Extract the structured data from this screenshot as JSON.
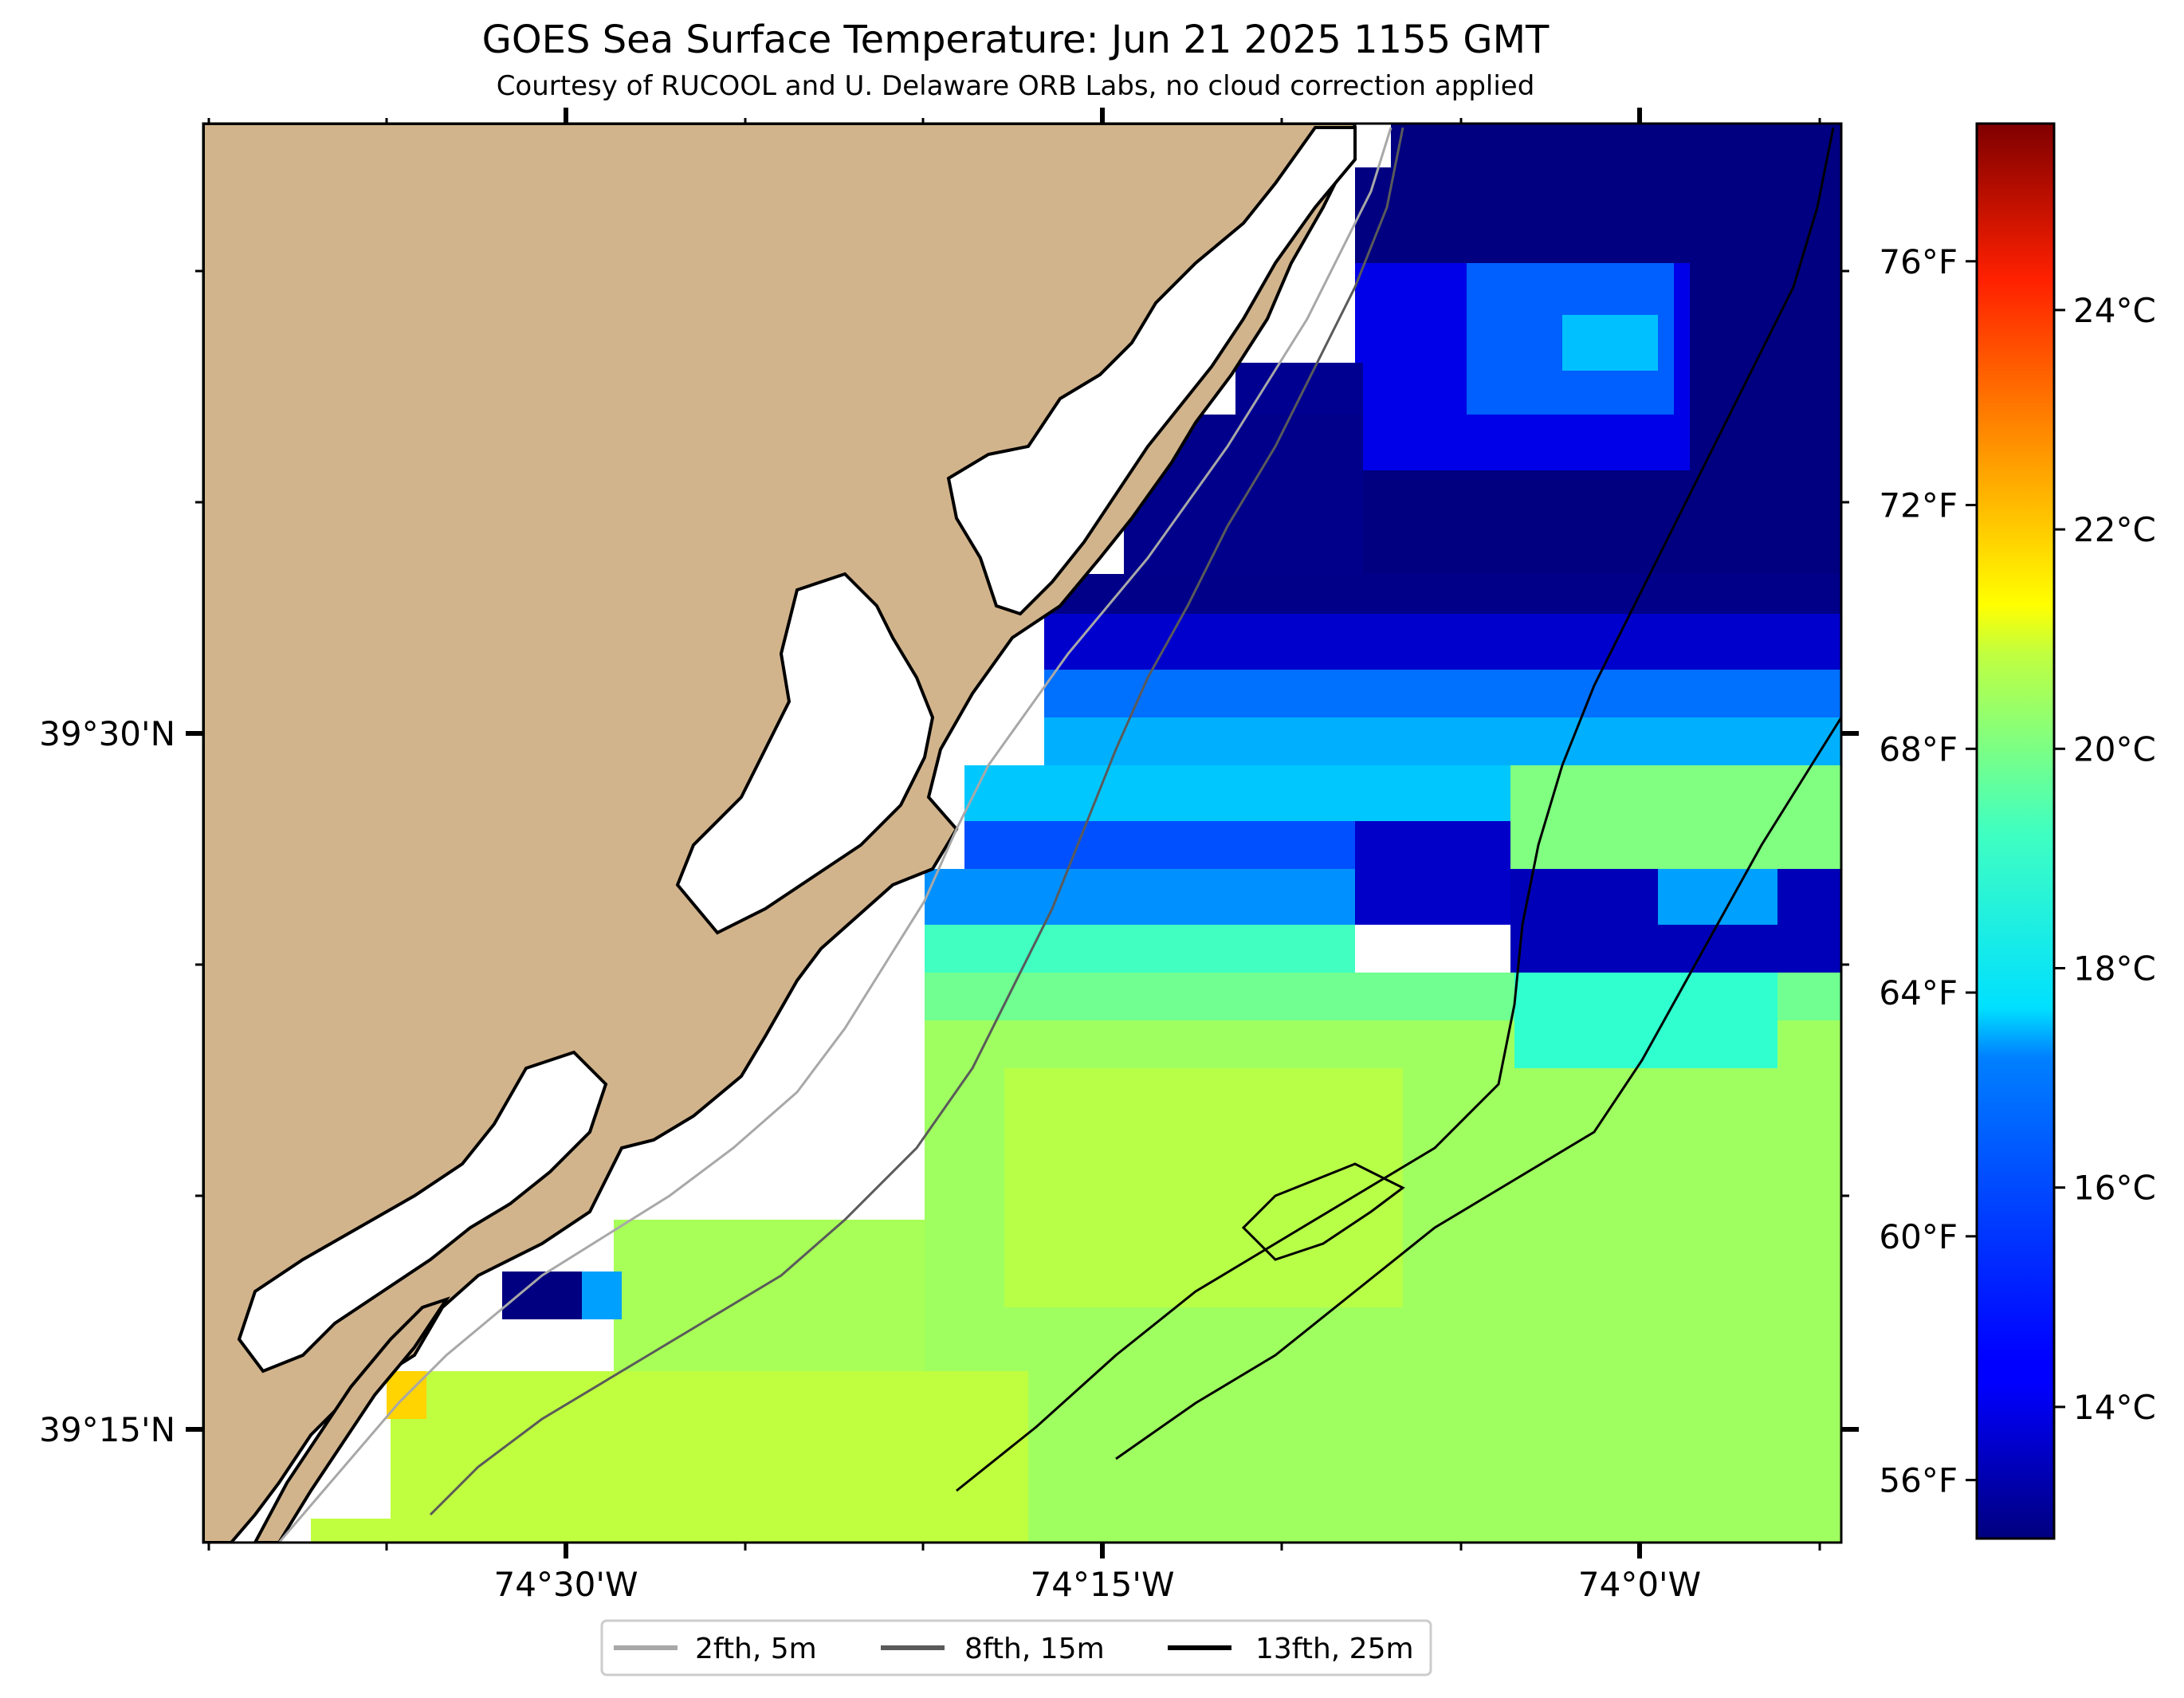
{
  "title": "GOES Sea Surface Temperature: Jun 21 2025 1155 GMT",
  "subtitle": "Courtesy of RUCOOL and U. Delaware ORB Labs, no cloud correction applied",
  "axes": {
    "x_ticks": [
      "74°30'W",
      "74°15'W",
      "74°0'W"
    ],
    "y_ticks": [
      "39°30'N",
      "39°15'N"
    ]
  },
  "colorbar": {
    "colormap": "jet",
    "range_c": [
      12.8,
      25.7
    ],
    "celsius_ticks": [
      "24°C",
      "22°C",
      "20°C",
      "18°C",
      "16°C",
      "14°C"
    ],
    "celsius_values": [
      24,
      22,
      20,
      18,
      16,
      14
    ],
    "fahrenheit_ticks": [
      "76°F",
      "72°F",
      "68°F",
      "64°F",
      "60°F",
      "56°F"
    ],
    "fahrenheit_values": [
      76,
      72,
      68,
      64,
      60,
      56
    ]
  },
  "legend": {
    "items": [
      {
        "label": "2fth, 5m",
        "color": "#a8a8a8"
      },
      {
        "label": "8fth, 15m",
        "color": "#5a5a5a"
      },
      {
        "label": "13fth, 25m",
        "color": "#000000"
      }
    ]
  },
  "colors": {
    "land": "#d2b48c",
    "cloud_mask": "#ffffff"
  },
  "sst_sample_c": [
    {
      "area": "offshore-north",
      "value": 13.0
    },
    {
      "area": "north-core",
      "value": 16.5
    },
    {
      "area": "mid-band",
      "value": 17.5
    },
    {
      "area": "south-shelf",
      "value": 20.0
    },
    {
      "area": "southwest-warm",
      "value": 21.5
    }
  ]
}
